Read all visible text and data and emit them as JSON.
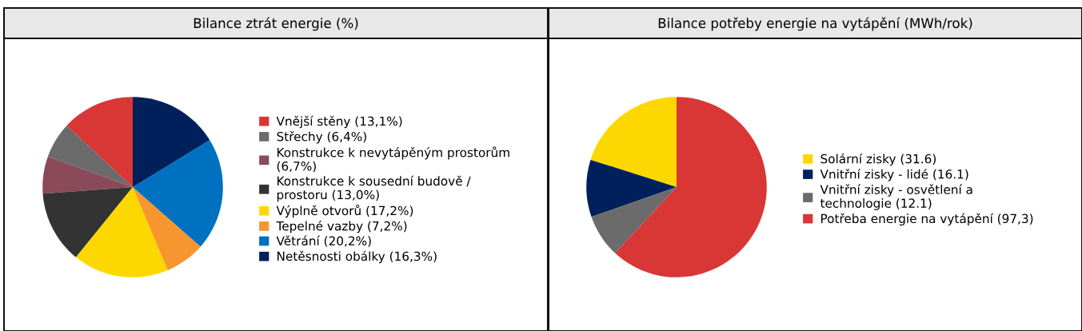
{
  "chart_data": [
    {
      "type": "pie",
      "title": "Bilance ztrát energie (%)",
      "legend": "right",
      "categories": [
        "Vnější stěny (13,1%)",
        "Střechy (6,4%)",
        "Konstrukce k nevytápěným prostorům\n(6,7%)",
        "Konstrukce k sousední budově /\nprostoru (13,0%)",
        "Výplně otvorů (17,2%)",
        "Tepelné vazby (7,2%)",
        "Větrání (20,2%)",
        "Netěsnosti obálky (16,3%)"
      ],
      "values": [
        13.1,
        6.4,
        6.7,
        13.0,
        17.2,
        7.2,
        20.2,
        16.3
      ],
      "colors": [
        "#d93636",
        "#6b6b6b",
        "#8a4a5a",
        "#333333",
        "#fcd800",
        "#f7962f",
        "#0070c0",
        "#00205b"
      ]
    },
    {
      "type": "pie",
      "title": "Bilance potřeby energie na vytápění (MWh/rok)",
      "legend": "right",
      "categories": [
        "Solární zisky (31.6)",
        "Vnitřní zisky - lidé (16.1)",
        "Vnitřní zisky - osvětlení a\ntechnologie (12.1)",
        "Potřeba energie na vytápění (97,3)"
      ],
      "values": [
        31.6,
        16.1,
        12.1,
        97.3
      ],
      "colors": [
        "#fcd800",
        "#00205b",
        "#6b6b6b",
        "#d93636"
      ]
    }
  ]
}
